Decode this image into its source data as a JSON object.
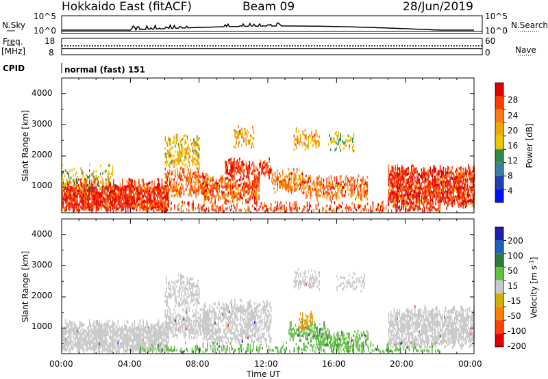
{
  "header": {
    "station": "Hokkaido East (fitACF)",
    "beam": "Beam 09",
    "date": "28/Jun/2019"
  },
  "status_panels": {
    "nsky_label": "N.Sky",
    "nsearch_label": "N.Search",
    "freq_label_line1": "Freq.",
    "freq_label_line2": "[MHz]",
    "nave_label": "Nave",
    "cpid_label": "CPID",
    "mode_text": "normal (fast) 151",
    "noise_ticks": [
      "10^5",
      "10^0"
    ],
    "freq_ticks": [
      "18",
      "8"
    ],
    "nave_ticks": [
      "60",
      "0"
    ]
  },
  "axes": {
    "ylabel": "Slant Range [km]",
    "xlabel": "Time UT",
    "ytick_labels": [
      "4000",
      "3000",
      "2000",
      "1000"
    ],
    "xtick_labels": [
      "00:00",
      "04:00",
      "08:00",
      "12:00",
      "16:00",
      "20:00",
      "00:00"
    ]
  },
  "colorbars": {
    "power": {
      "label": "Power [dB]",
      "tick_labels": [
        "28",
        "24",
        "20",
        "16",
        "12",
        "8",
        "4"
      ],
      "colors": [
        "#e00000",
        "#ff3a00",
        "#ff7a10",
        "#f0a800",
        "#e8c800",
        "#2f8a4a",
        "#3a7fa0",
        "#2040b0",
        "#0010ff"
      ]
    },
    "velocity": {
      "label": "Velocity [m s",
      "label_sup": "-1",
      "label_end": "]",
      "tick_labels": [
        "200",
        "100",
        "50",
        "15",
        "-15",
        "-50",
        "-100",
        "-200"
      ],
      "colors": [
        "#1e1eb0",
        "#2060c0",
        "#2f7a3a",
        "#60c040",
        "#c8c8c8",
        "#d0b000",
        "#ff8000",
        "#ff4000",
        "#e00000"
      ]
    }
  },
  "chart_data": [
    {
      "type": "heatmap",
      "name": "power",
      "x_range_hours": [
        0,
        24
      ],
      "y_range_km": [
        180,
        4500
      ],
      "zlim_db": [
        0,
        32
      ],
      "regions": [
        {
          "t": [
            0.0,
            6.2
          ],
          "r": [
            280,
            1150
          ],
          "level": 1.0,
          "density": 0.9
        },
        {
          "t": [
            0.0,
            3.0
          ],
          "r": [
            1000,
            1600
          ],
          "level": 0.55,
          "density": 0.3
        },
        {
          "t": [
            6.0,
            8.6
          ],
          "r": [
            800,
            1500
          ],
          "level": 0.85,
          "density": 0.7
        },
        {
          "t": [
            6.0,
            8.0
          ],
          "r": [
            1700,
            2600
          ],
          "level": 0.6,
          "density": 0.55
        },
        {
          "t": [
            8.2,
            11.5
          ],
          "r": [
            600,
            1300
          ],
          "level": 0.9,
          "density": 0.7
        },
        {
          "t": [
            9.5,
            12.2
          ],
          "r": [
            1400,
            1800
          ],
          "level": 1.0,
          "density": 0.75
        },
        {
          "t": [
            10.0,
            11.2
          ],
          "r": [
            2300,
            2900
          ],
          "level": 0.7,
          "density": 0.5
        },
        {
          "t": [
            12.2,
            14.0
          ],
          "r": [
            900,
            1500
          ],
          "level": 0.8,
          "density": 0.6
        },
        {
          "t": [
            13.5,
            15.0
          ],
          "r": [
            2300,
            2800
          ],
          "level": 0.7,
          "density": 0.5
        },
        {
          "t": [
            14.0,
            17.8
          ],
          "r": [
            700,
            1300
          ],
          "level": 0.85,
          "density": 0.6
        },
        {
          "t": [
            15.5,
            17.0
          ],
          "r": [
            2300,
            2700
          ],
          "level": 0.5,
          "density": 0.5
        },
        {
          "t": [
            19.0,
            24.0
          ],
          "r": [
            450,
            1600
          ],
          "level": 1.0,
          "density": 0.8
        },
        {
          "t": [
            4.5,
            22.0
          ],
          "r": [
            200,
            420
          ],
          "level": 0.95,
          "density": 0.55
        }
      ]
    },
    {
      "type": "heatmap",
      "name": "velocity",
      "x_range_hours": [
        0,
        24
      ],
      "y_range_km": [
        180,
        4500
      ],
      "zlim_ms": [
        -200,
        200
      ],
      "regions": [
        {
          "t": [
            0.0,
            6.2
          ],
          "r": [
            280,
            1150
          ],
          "v": 0,
          "density": 0.85
        },
        {
          "t": [
            6.0,
            8.6
          ],
          "r": [
            800,
            1500
          ],
          "v": 0,
          "density": 0.7
        },
        {
          "t": [
            6.0,
            8.0
          ],
          "r": [
            1700,
            2600
          ],
          "v": 0,
          "density": 0.5
        },
        {
          "t": [
            8.2,
            12.2
          ],
          "r": [
            600,
            1800
          ],
          "v": 0,
          "density": 0.65
        },
        {
          "t": [
            13.2,
            15.5
          ],
          "r": [
            700,
            1100
          ],
          "v": 40,
          "density": 0.75
        },
        {
          "t": [
            13.8,
            14.6
          ],
          "r": [
            1050,
            1400
          ],
          "v": -60,
          "density": 0.6
        },
        {
          "t": [
            14.8,
            17.8
          ],
          "r": [
            400,
            800
          ],
          "v": 45,
          "density": 0.7
        },
        {
          "t": [
            13.5,
            15.0
          ],
          "r": [
            2300,
            2800
          ],
          "v": 0,
          "density": 0.5
        },
        {
          "t": [
            16.0,
            17.6
          ],
          "r": [
            2300,
            2700
          ],
          "v": 0,
          "density": 0.45
        },
        {
          "t": [
            19.0,
            24.0
          ],
          "r": [
            450,
            1600
          ],
          "v": 0,
          "density": 0.75
        },
        {
          "t": [
            4.5,
            22.0
          ],
          "r": [
            200,
            420
          ],
          "v": 30,
          "density": 0.5
        }
      ]
    }
  ]
}
